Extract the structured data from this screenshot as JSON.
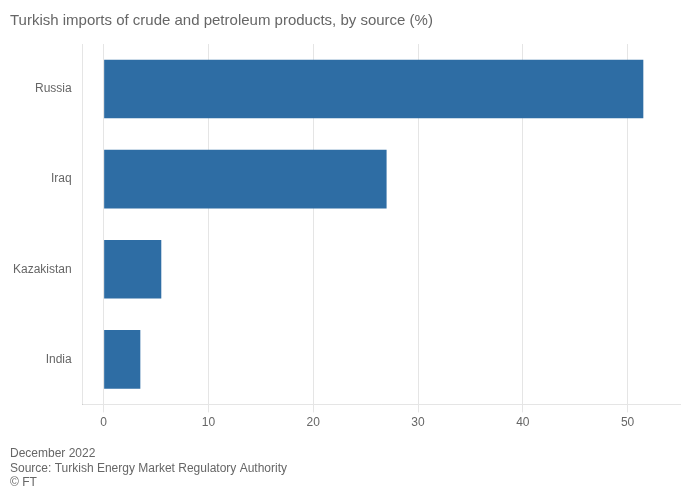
{
  "chart_data": {
    "type": "bar",
    "orientation": "horizontal",
    "title": "Turkish imports of crude and petroleum products, by source (%)",
    "categories": [
      "India",
      "Kazakistan",
      "Iraq",
      "Russia"
    ],
    "values": [
      3.5,
      5.5,
      27.0,
      51.5
    ],
    "color": "#2e6da4",
    "xlim": [
      -2,
      55
    ],
    "xticks": [
      0,
      10,
      20,
      30,
      40,
      50
    ],
    "grid": true,
    "annotations": [
      "December 2022",
      "Source: Turkish Energy Market Regulatory Authority",
      "© FT"
    ]
  }
}
